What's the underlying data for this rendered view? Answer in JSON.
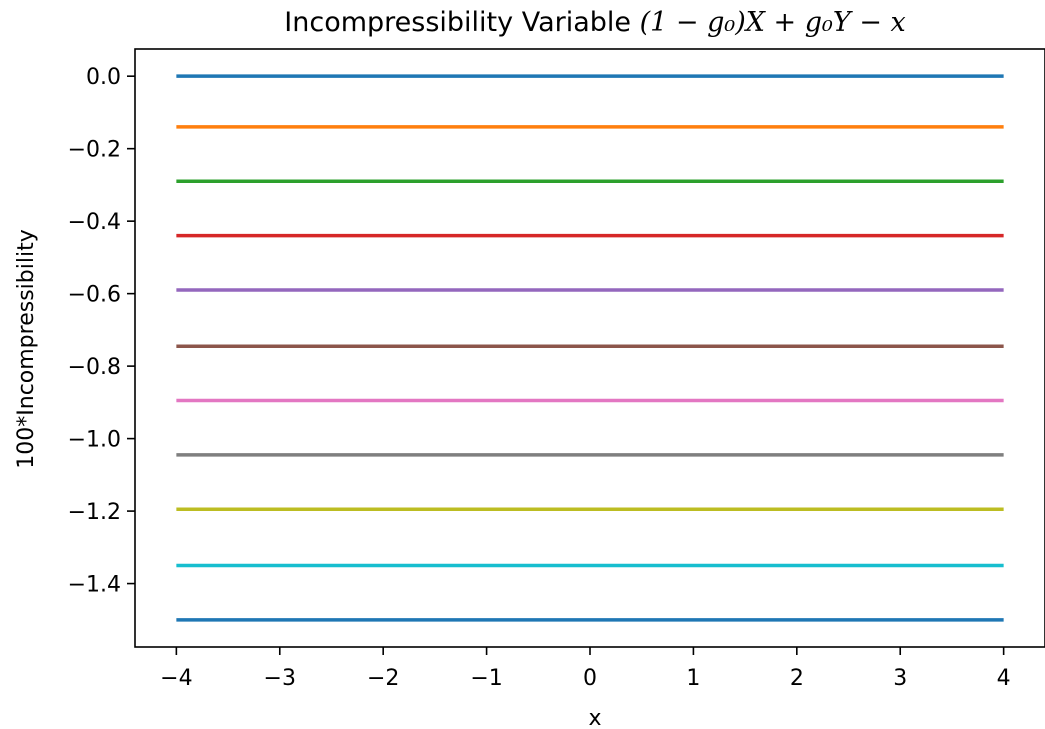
{
  "chart_data": {
    "type": "line",
    "title": {
      "prefix": "Incompressibility Variable ",
      "math": "(1 − g₀)X + g₀Y − x"
    },
    "xlabel": "x",
    "ylabel": "100*Incompressibility",
    "xlim": [
      -4.4,
      4.4
    ],
    "ylim": [
      -1.575,
      0.075
    ],
    "x_ticks": [
      -4,
      -3,
      -2,
      -1,
      0,
      1,
      2,
      3,
      4
    ],
    "x_tick_labels": [
      "−4",
      "−3",
      "−2",
      "−1",
      "0",
      "1",
      "2",
      "3",
      "4"
    ],
    "y_ticks": [
      0.0,
      -0.2,
      -0.4,
      -0.6,
      -0.8,
      -1.0,
      -1.2,
      -1.4
    ],
    "y_tick_labels": [
      "0.0",
      "−0.2",
      "−0.4",
      "−0.6",
      "−0.8",
      "−1.0",
      "−1.2",
      "−1.4"
    ],
    "grid": false,
    "x": [
      -4,
      4
    ],
    "series": [
      {
        "values": [
          0.0,
          0.0
        ],
        "color": "#1f77b4"
      },
      {
        "values": [
          -0.14,
          -0.14
        ],
        "color": "#ff7f0e"
      },
      {
        "values": [
          -0.29,
          -0.29
        ],
        "color": "#2ca02c"
      },
      {
        "values": [
          -0.44,
          -0.44
        ],
        "color": "#d62728"
      },
      {
        "values": [
          -0.59,
          -0.59
        ],
        "color": "#9467bd"
      },
      {
        "values": [
          -0.745,
          -0.745
        ],
        "color": "#8c564b"
      },
      {
        "values": [
          -0.895,
          -0.895
        ],
        "color": "#e377c2"
      },
      {
        "values": [
          -1.045,
          -1.045
        ],
        "color": "#7f7f7f"
      },
      {
        "values": [
          -1.195,
          -1.195
        ],
        "color": "#bcbd22"
      },
      {
        "values": [
          -1.35,
          -1.35
        ],
        "color": "#17becf"
      },
      {
        "values": [
          -1.5,
          -1.5
        ],
        "color": "#1f77b4"
      }
    ]
  }
}
